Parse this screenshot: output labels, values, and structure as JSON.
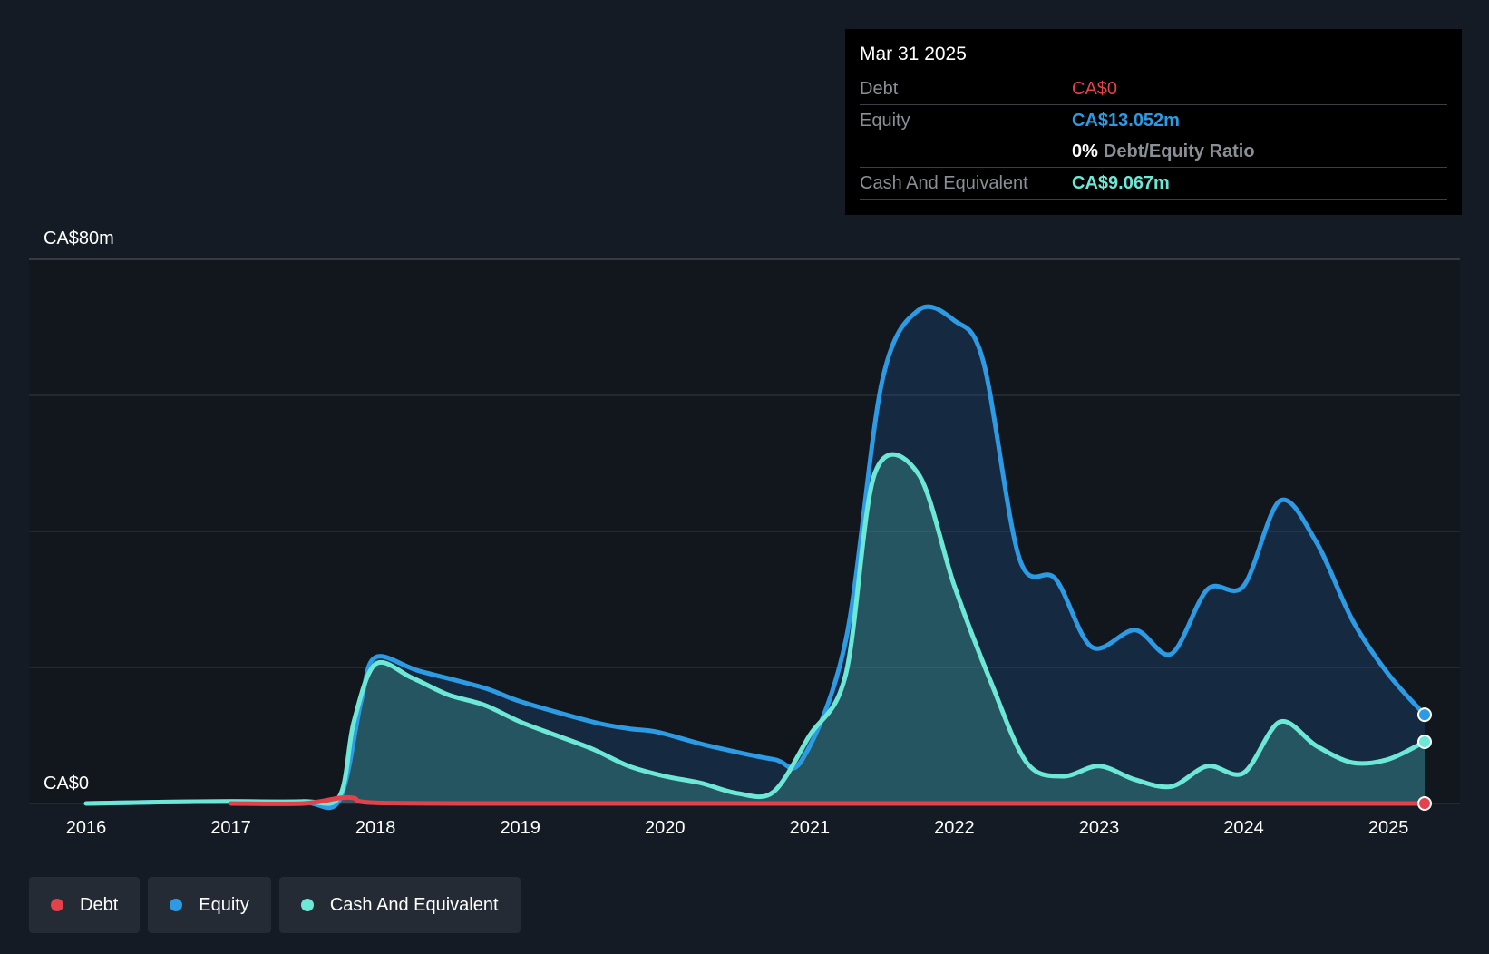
{
  "chart_data": {
    "type": "area",
    "y_axis_labels": [
      "CA$80m",
      "CA$0"
    ],
    "ylim": [
      0,
      80
    ],
    "xlim": [
      2015.95,
      2025.25
    ],
    "x_ticks": [
      "2016",
      "2017",
      "2018",
      "2019",
      "2020",
      "2021",
      "2022",
      "2023",
      "2024",
      "2025"
    ],
    "grid": true,
    "legend_position": "bottom-left",
    "series": [
      {
        "name": "Debt",
        "color": "#e5414a",
        "points": [
          [
            2017.0,
            0
          ],
          [
            2017.5,
            0
          ],
          [
            2017.75,
            0.8
          ],
          [
            2017.85,
            0.8
          ],
          [
            2018.0,
            0.1
          ],
          [
            2019.0,
            0
          ],
          [
            2020.0,
            0
          ],
          [
            2021.0,
            0
          ],
          [
            2022.0,
            0
          ],
          [
            2023.0,
            0
          ],
          [
            2024.0,
            0
          ],
          [
            2025.0,
            0
          ],
          [
            2025.25,
            0
          ]
        ]
      },
      {
        "name": "Equity",
        "color": "#2d9be4",
        "points": [
          [
            2016.0,
            0
          ],
          [
            2016.5,
            0.2
          ],
          [
            2017.0,
            0.3
          ],
          [
            2017.5,
            0.2
          ],
          [
            2017.75,
            0.5
          ],
          [
            2017.9,
            15
          ],
          [
            2018.0,
            21.5
          ],
          [
            2018.3,
            19.5
          ],
          [
            2018.75,
            17
          ],
          [
            2019.0,
            15
          ],
          [
            2019.5,
            12
          ],
          [
            2019.75,
            11
          ],
          [
            2019.95,
            10.5
          ],
          [
            2020.3,
            8.5
          ],
          [
            2020.75,
            6.5
          ],
          [
            2020.95,
            6.5
          ],
          [
            2021.25,
            24
          ],
          [
            2021.5,
            62
          ],
          [
            2021.75,
            72.5
          ],
          [
            2022.0,
            71
          ],
          [
            2022.2,
            65
          ],
          [
            2022.45,
            36
          ],
          [
            2022.7,
            33
          ],
          [
            2022.95,
            23
          ],
          [
            2023.25,
            25.5
          ],
          [
            2023.5,
            22
          ],
          [
            2023.75,
            31.5
          ],
          [
            2024.0,
            32
          ],
          [
            2024.25,
            44.5
          ],
          [
            2024.5,
            38.5
          ],
          [
            2024.75,
            27
          ],
          [
            2025.0,
            19
          ],
          [
            2025.25,
            13.05
          ]
        ]
      },
      {
        "name": "Cash And Equivalent",
        "color": "#6ee8d6",
        "points": [
          [
            2016.0,
            0
          ],
          [
            2016.5,
            0.2
          ],
          [
            2017.0,
            0.3
          ],
          [
            2017.5,
            0.3
          ],
          [
            2017.75,
            1
          ],
          [
            2017.85,
            12
          ],
          [
            2018.0,
            20.5
          ],
          [
            2018.25,
            18.5
          ],
          [
            2018.5,
            16
          ],
          [
            2018.75,
            14.5
          ],
          [
            2019.0,
            12
          ],
          [
            2019.25,
            10
          ],
          [
            2019.5,
            8
          ],
          [
            2019.75,
            5.5
          ],
          [
            2020.0,
            4
          ],
          [
            2020.25,
            3
          ],
          [
            2020.5,
            1.5
          ],
          [
            2020.75,
            1.7
          ],
          [
            2021.0,
            10
          ],
          [
            2021.25,
            19
          ],
          [
            2021.45,
            48.5
          ],
          [
            2021.75,
            48.5
          ],
          [
            2022.0,
            32
          ],
          [
            2022.25,
            18
          ],
          [
            2022.5,
            6
          ],
          [
            2022.75,
            4
          ],
          [
            2023.0,
            5.5
          ],
          [
            2023.25,
            3.5
          ],
          [
            2023.5,
            2.5
          ],
          [
            2023.75,
            5.5
          ],
          [
            2024.0,
            4.5
          ],
          [
            2024.25,
            12
          ],
          [
            2024.5,
            8.5
          ],
          [
            2024.75,
            6
          ],
          [
            2025.0,
            6.5
          ],
          [
            2025.25,
            9.07
          ]
        ]
      }
    ],
    "tooltip": {
      "date": "Mar 31 2025",
      "rows": [
        {
          "label": "Debt",
          "value": "CA$0"
        },
        {
          "label": "Equity",
          "value": "CA$13.052m"
        },
        {
          "label": "",
          "value": "0%",
          "suffix": "Debt/Equity Ratio"
        },
        {
          "label": "Cash And Equivalent",
          "value": "CA$9.067m"
        }
      ]
    },
    "legend": [
      "Debt",
      "Equity",
      "Cash And Equivalent"
    ]
  }
}
